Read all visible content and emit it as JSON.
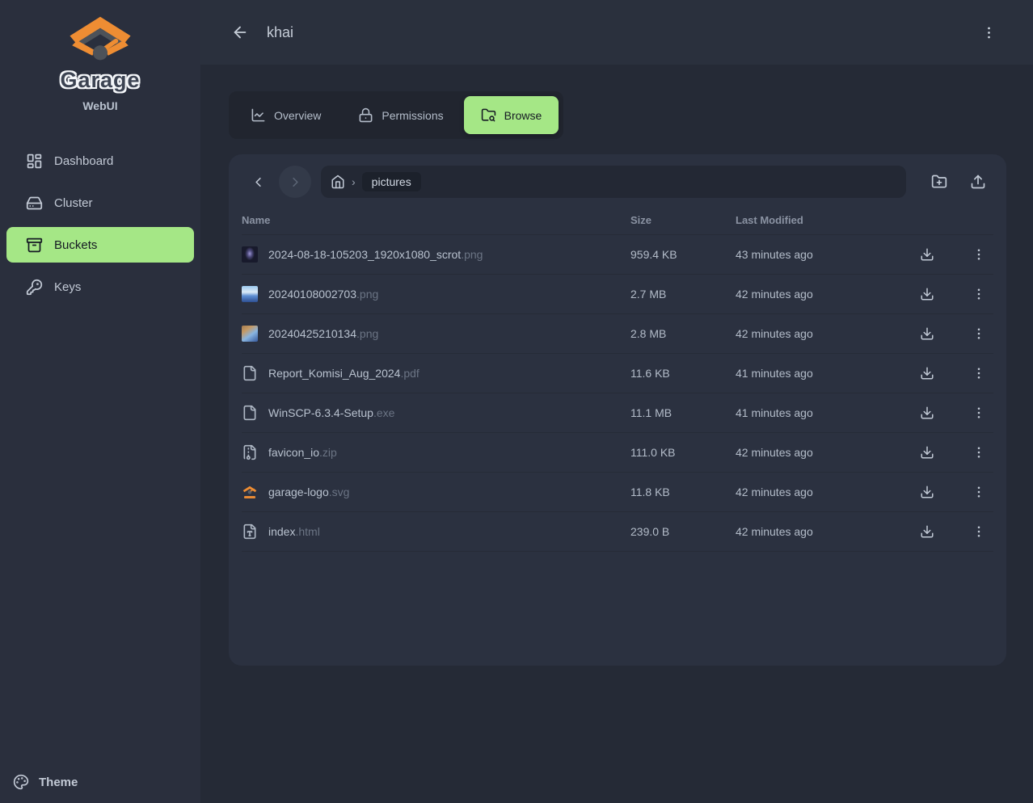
{
  "sidebar": {
    "logo_title": "Garage",
    "logo_subtitle": "WebUI",
    "items": [
      {
        "label": "Dashboard",
        "icon": "dashboard-icon",
        "active": false
      },
      {
        "label": "Cluster",
        "icon": "cluster-icon",
        "active": false
      },
      {
        "label": "Buckets",
        "icon": "buckets-icon",
        "active": true
      },
      {
        "label": "Keys",
        "icon": "keys-icon",
        "active": false
      }
    ],
    "theme_label": "Theme"
  },
  "header": {
    "title": "khai"
  },
  "tabs": [
    {
      "label": "Overview",
      "icon": "chart-icon",
      "active": false
    },
    {
      "label": "Permissions",
      "icon": "lock-icon",
      "active": false
    },
    {
      "label": "Browse",
      "icon": "folder-search-icon",
      "active": true
    }
  ],
  "browser": {
    "breadcrumb": {
      "path_chip": "pictures"
    },
    "table": {
      "columns": [
        "Name",
        "Size",
        "Last Modified"
      ],
      "rows": [
        {
          "name": "2024-08-18-105203_1920x1080_scrot",
          "ext": ".png",
          "size": "959.4 KB",
          "modified": "43 minutes ago",
          "icon": "thumb-scrot"
        },
        {
          "name": "20240108002703",
          "ext": ".png",
          "size": "2.7 MB",
          "modified": "42 minutes ago",
          "icon": "thumb-blue-sky"
        },
        {
          "name": "20240425210134",
          "ext": ".png",
          "size": "2.8 MB",
          "modified": "42 minutes ago",
          "icon": "thumb-blue-sand"
        },
        {
          "name": "Report_Komisi_Aug_2024",
          "ext": ".pdf",
          "size": "11.6 KB",
          "modified": "41 minutes ago",
          "icon": "file"
        },
        {
          "name": "WinSCP-6.3.4-Setup",
          "ext": ".exe",
          "size": "11.1 MB",
          "modified": "41 minutes ago",
          "icon": "file"
        },
        {
          "name": "favicon_io",
          "ext": ".zip",
          "size": "111.0 KB",
          "modified": "42 minutes ago",
          "icon": "file-archive"
        },
        {
          "name": "garage-logo",
          "ext": ".svg",
          "size": "11.8 KB",
          "modified": "42 minutes ago",
          "icon": "thumb-garage"
        },
        {
          "name": "index",
          "ext": ".html",
          "size": "239.0 B",
          "modified": "42 minutes ago",
          "icon": "file-type"
        }
      ]
    }
  },
  "colors": {
    "accent_green": "#a5e786",
    "brand_orange": "#ee8d33",
    "panel_bg": "#2b3140",
    "page_bg": "#252a36",
    "sidebar_bg": "#2a2f3d"
  }
}
